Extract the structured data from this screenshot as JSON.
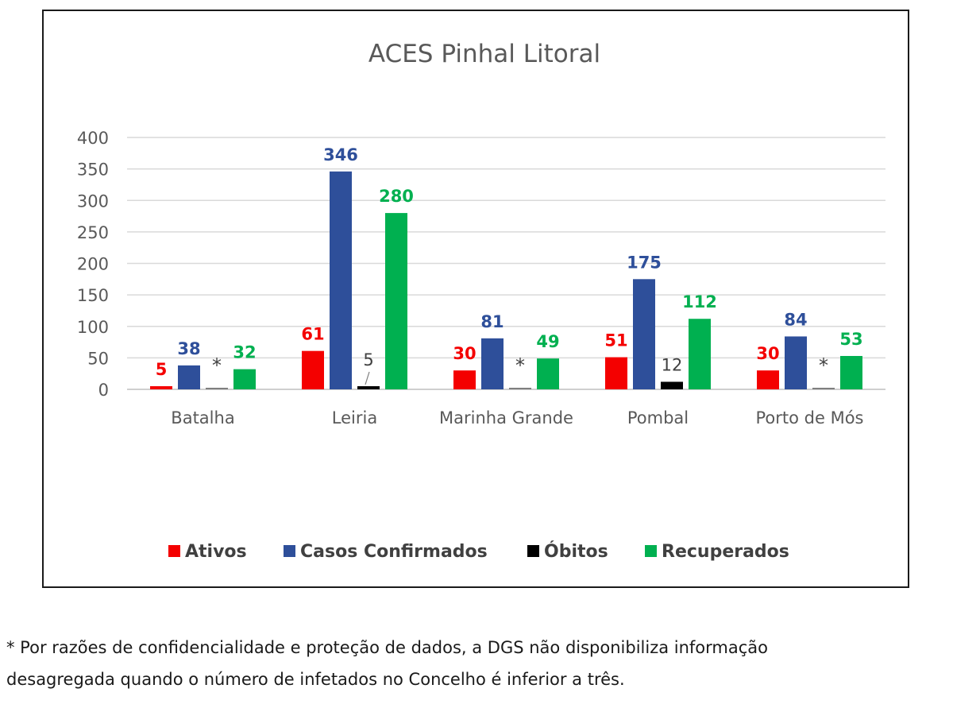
{
  "chart_data": {
    "type": "bar",
    "title": "ACES Pinhal Litoral",
    "categories": [
      "Batalha",
      "Leiria",
      "Marinha Grande",
      "Pombal",
      "Porto de Mós"
    ],
    "ylim": [
      0,
      400
    ],
    "yticks": [
      0,
      50,
      100,
      150,
      200,
      250,
      300,
      350,
      400
    ],
    "grid": true,
    "legend_position": "bottom",
    "series": [
      {
        "name": "Ativos",
        "color": "#f40000",
        "values": [
          5,
          61,
          30,
          51,
          30
        ],
        "labels": [
          "5",
          "61",
          "30",
          "51",
          "30"
        ]
      },
      {
        "name": "Casos Confirmados",
        "color": "#2e4f9a",
        "values": [
          38,
          346,
          81,
          175,
          84
        ],
        "labels": [
          "38",
          "346",
          "81",
          "175",
          "84"
        ]
      },
      {
        "name": "Óbitos",
        "color": "#000000",
        "values": [
          0,
          5,
          0,
          12,
          0
        ],
        "labels": [
          "*",
          "5",
          "*",
          "12",
          "*"
        ]
      },
      {
        "name": "Recuperados",
        "color": "#00b050",
        "values": [
          32,
          280,
          49,
          112,
          53
        ],
        "labels": [
          "32",
          "280",
          "49",
          "112",
          "53"
        ]
      }
    ]
  },
  "footnote": {
    "line1": "* Por razões de confidencialidade e proteção de dados, a DGS não disponibiliza informação",
    "line2": "desagregada quando o número de infetados no Concelho é inferior a três."
  }
}
